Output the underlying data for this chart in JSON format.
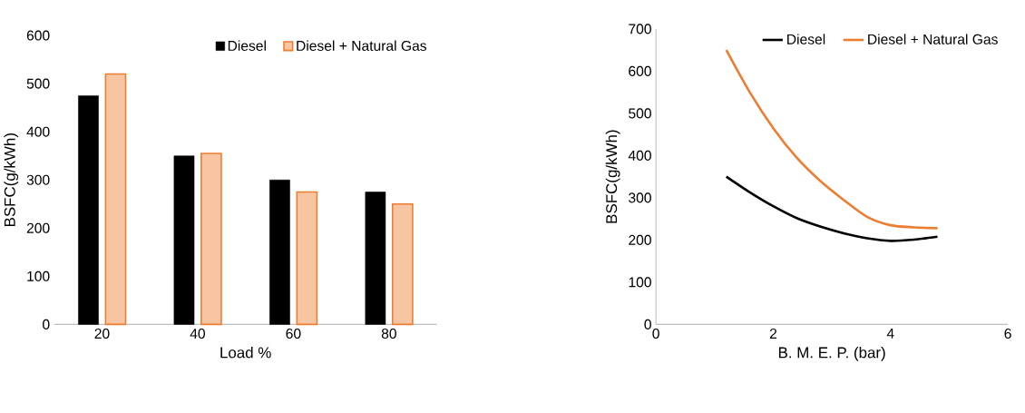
{
  "chart_data": [
    {
      "type": "bar",
      "xlabel": "Load %",
      "ylabel": "BSFC(g/kWh)",
      "categories": [
        "20",
        "40",
        "60",
        "80"
      ],
      "ylim": [
        0,
        600
      ],
      "yticks": [
        0,
        100,
        200,
        300,
        400,
        500,
        600
      ],
      "legend": "top right",
      "series": [
        {
          "name": "Diesel",
          "color": "#000000",
          "values": [
            475,
            350,
            300,
            275
          ]
        },
        {
          "name": "Diesel + Natural Gas",
          "color": "#ed7d31",
          "values": [
            520,
            355,
            275,
            250
          ]
        }
      ]
    },
    {
      "type": "line",
      "xlabel": "B. M. E. P. (bar)",
      "ylabel": "BSFC(g/kWh)",
      "xlim": [
        0,
        6
      ],
      "xticks": [
        0,
        2,
        4,
        6
      ],
      "ylim": [
        0,
        700
      ],
      "yticks": [
        0,
        100,
        200,
        300,
        400,
        500,
        600,
        700
      ],
      "legend": "top right",
      "series": [
        {
          "name": "Diesel",
          "color": "#000000",
          "x": [
            1.2,
            1.6,
            2,
            2.4,
            2.8,
            3.2,
            3.6,
            4,
            4.4,
            4.8
          ],
          "values": [
            350,
            313,
            280,
            252,
            232,
            216,
            204,
            198,
            201,
            208
          ]
        },
        {
          "name": "Diesel + Natural Gas",
          "color": "#ed7d31",
          "x": [
            1.2,
            1.6,
            2,
            2.4,
            2.8,
            3.2,
            3.6,
            4,
            4.4,
            4.8
          ],
          "values": [
            650,
            550,
            465,
            395,
            340,
            295,
            255,
            235,
            230,
            228
          ]
        }
      ]
    }
  ]
}
